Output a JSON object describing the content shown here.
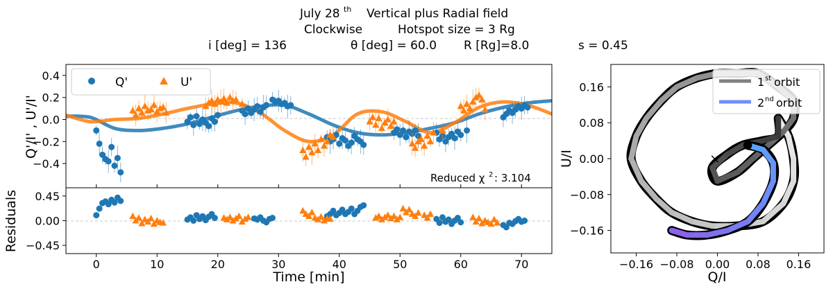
{
  "title": {
    "line1": {
      "main": "July 28",
      "sup": "th",
      "rest": "Vertical plus Radial field"
    },
    "line2": {
      "direction": "Clockwise",
      "hotspot": "Hotspot size = 3 Rg"
    },
    "line3": {
      "inc": "i [deg] = 136",
      "theta": "θ [deg] = 60.0",
      "radius": "R [Rg]=8.0",
      "s": "s = 0.45"
    }
  },
  "chart_data": [
    {
      "type": "scatter",
      "panel": "top-left",
      "ylabel": "Q'/I' , U'/I'",
      "xlim": [
        -5,
        75
      ],
      "ylim": [
        -0.62,
        0.5
      ],
      "xticks": [
        0,
        10,
        20,
        30,
        40,
        50,
        60,
        70
      ],
      "yticks": [
        0.4,
        0.2,
        0.0,
        -0.2,
        -0.4
      ],
      "ytick_labels": [
        "0.4",
        "0.2",
        "0.0",
        "−0.2",
        "−0.4"
      ],
      "legend": {
        "entries": [
          "Q'",
          "U'"
        ],
        "placement": "upper-left"
      },
      "annotation": {
        "text": "Reduced χ",
        "sup": "2",
        "value": ":  3.104"
      },
      "series": [
        {
          "name": "Q'",
          "color": "#1f77b4",
          "marker": "circle",
          "x": [
            0,
            0.5,
            1,
            1.5,
            2,
            2.5,
            3,
            3.5,
            4,
            15,
            15.5,
            16,
            16.5,
            17,
            17.5,
            18,
            18.5,
            19,
            19.5,
            20,
            24,
            24.5,
            25,
            25.5,
            26,
            26.5,
            27,
            27.5,
            28,
            29,
            29.5,
            30,
            30.5,
            31,
            31.5,
            32,
            38,
            38.5,
            39,
            39.5,
            40,
            40.5,
            41,
            41.5,
            42,
            42.5,
            43,
            43.5,
            44,
            49,
            49.5,
            50,
            50.5,
            51,
            51.5,
            52,
            52.5,
            53,
            56,
            56.5,
            57,
            57.5,
            58,
            58.5,
            59,
            59.5,
            60,
            61,
            67,
            67.5,
            68,
            68.5,
            69,
            69.5,
            70,
            70.5,
            71
          ],
          "y": [
            -0.1,
            -0.22,
            -0.32,
            -0.36,
            -0.38,
            -0.25,
            -0.42,
            -0.35,
            -0.48,
            -0.02,
            0.02,
            -0.05,
            0.03,
            -0.04,
            0.0,
            -0.03,
            -0.06,
            0.01,
            -0.02,
            0.04,
            0.08,
            0.05,
            0.1,
            0.06,
            0.09,
            0.12,
            0.07,
            0.11,
            0.13,
            0.18,
            0.16,
            0.17,
            0.14,
            0.15,
            0.12,
            0.13,
            -0.16,
            -0.2,
            -0.18,
            -0.14,
            -0.22,
            -0.17,
            -0.19,
            -0.24,
            -0.21,
            -0.15,
            -0.18,
            -0.2,
            -0.23,
            -0.12,
            -0.09,
            -0.14,
            -0.1,
            -0.16,
            -0.11,
            -0.13,
            -0.1,
            -0.15,
            -0.12,
            -0.18,
            -0.15,
            -0.2,
            -0.16,
            -0.13,
            -0.17,
            -0.11,
            -0.14,
            -0.1,
            0.02,
            0.05,
            0.08,
            0.06,
            0.09,
            0.12,
            0.1,
            0.13,
            0.11
          ]
        },
        {
          "name": "U'",
          "color": "#ff7f0e",
          "marker": "triangle",
          "x": [
            6,
            6.5,
            7,
            7.5,
            8,
            8.5,
            9,
            9.5,
            10,
            10.5,
            11,
            11.5,
            18,
            18.5,
            19,
            19.5,
            20,
            20.5,
            21,
            21.5,
            22,
            22.5,
            23,
            24,
            34,
            34.5,
            35,
            35.5,
            36,
            36.5,
            37,
            37.5,
            38,
            38.5,
            39,
            45,
            45.5,
            46,
            46.5,
            47,
            47.5,
            48,
            48.5,
            49,
            52,
            52.5,
            53,
            53.5,
            54,
            54.5,
            55,
            55.5,
            57,
            60,
            60.5,
            61,
            61.5,
            62,
            62.5,
            63,
            63.5,
            64
          ],
          "y": [
            0.08,
            0.04,
            0.1,
            0.06,
            0.12,
            0.08,
            0.09,
            0.13,
            0.07,
            0.1,
            0.11,
            0.06,
            0.12,
            0.15,
            0.17,
            0.14,
            0.18,
            0.16,
            0.19,
            0.15,
            0.2,
            0.17,
            0.18,
            0.14,
            -0.28,
            -0.34,
            -0.25,
            -0.3,
            -0.22,
            -0.28,
            -0.18,
            -0.24,
            -0.2,
            -0.14,
            -0.16,
            -0.02,
            0.02,
            -0.05,
            0.01,
            -0.08,
            -0.03,
            0.0,
            -0.06,
            -0.02,
            -0.22,
            -0.26,
            -0.2,
            -0.18,
            -0.24,
            -0.15,
            -0.2,
            -0.12,
            -0.1,
            0.12,
            0.08,
            0.14,
            0.1,
            0.16,
            0.2,
            0.22,
            0.18,
            0.09
          ]
        }
      ],
      "model_curves": [
        {
          "name": "Q' model",
          "color": "#1f77b4",
          "x": [
            -5,
            -1,
            3,
            7,
            11,
            15,
            19,
            23,
            27,
            31,
            35,
            39,
            43,
            47,
            51,
            55,
            59,
            63,
            67,
            71,
            75
          ],
          "y": [
            0.03,
            0.02,
            -0.08,
            -0.1,
            -0.08,
            -0.04,
            0.02,
            0.08,
            0.12,
            0.13,
            0.05,
            -0.05,
            -0.12,
            -0.14,
            -0.12,
            -0.08,
            -0.03,
            0.05,
            0.11,
            0.15,
            0.17
          ]
        },
        {
          "name": "U' model",
          "color": "#ff7f0e",
          "x": [
            -5,
            -1,
            3,
            7,
            11,
            15,
            19,
            23,
            27,
            31,
            35,
            39,
            43,
            47,
            51,
            55,
            59,
            63,
            67,
            71,
            75
          ],
          "y": [
            0.04,
            -0.02,
            0.0,
            0.01,
            0.05,
            0.1,
            0.14,
            0.15,
            0.06,
            -0.1,
            -0.2,
            -0.14,
            0.05,
            0.07,
            -0.02,
            -0.12,
            -0.03,
            0.11,
            0.16,
            0.13,
            0.05
          ]
        }
      ]
    },
    {
      "type": "scatter",
      "panel": "bottom-left",
      "xlabel": "Time [min]",
      "ylabel": "Residuals",
      "xlim": [
        -5,
        75
      ],
      "ylim": [
        -0.6,
        0.6
      ],
      "xticks": [
        0,
        10,
        20,
        30,
        40,
        50,
        60,
        70
      ],
      "yticks": [
        0.45,
        0.0,
        -0.45
      ],
      "ytick_labels": [
        "0.45",
        "0.00",
        "−0.45"
      ],
      "series": [
        {
          "name": "Q' residuals",
          "color": "#1f77b4",
          "marker": "circle",
          "x": [
            0,
            0.5,
            1,
            1.5,
            2,
            2.5,
            3,
            3.5,
            4,
            15,
            15.5,
            16,
            16.5,
            17,
            17.5,
            18,
            18.5,
            19,
            19.5,
            26,
            26.5,
            27,
            27.5,
            28,
            28.5,
            29,
            38,
            38.5,
            39,
            39.5,
            40,
            40.5,
            41,
            41.5,
            42,
            42.5,
            43,
            43.5,
            44,
            56,
            56.5,
            57,
            57.5,
            58,
            58.5,
            59,
            59.5,
            60,
            67,
            67.5,
            68,
            68.5,
            69,
            69.5,
            70,
            70.5
          ],
          "y": [
            0.1,
            0.22,
            0.32,
            0.35,
            0.3,
            0.38,
            0.33,
            0.42,
            0.36,
            0.02,
            0.06,
            0.0,
            0.1,
            0.03,
            0.08,
            0.01,
            0.07,
            0.12,
            0.05,
            0.04,
            0.02,
            0.06,
            0.0,
            -0.03,
            0.03,
            0.05,
            0.08,
            0.12,
            0.18,
            0.1,
            0.14,
            0.2,
            0.12,
            0.16,
            0.22,
            0.12,
            0.18,
            0.25,
            0.28,
            0.03,
            -0.04,
            0.06,
            -0.02,
            0.02,
            -0.06,
            0.0,
            0.05,
            -0.03,
            -0.08,
            -0.12,
            -0.04,
            -0.06,
            -0.01,
            0.03,
            -0.02,
            0.0
          ]
        },
        {
          "name": "U' residuals",
          "color": "#ff7f0e",
          "marker": "triangle",
          "x": [
            6,
            6.5,
            7,
            7.5,
            8,
            8.5,
            9,
            9.5,
            10,
            10.5,
            11,
            21,
            21.5,
            22,
            22.5,
            23,
            23.5,
            24,
            24.5,
            25,
            34,
            34.5,
            35,
            35.5,
            36,
            36.5,
            37,
            37.5,
            38,
            38.5,
            46,
            46.5,
            47,
            47.5,
            48,
            48.5,
            49,
            49.5,
            50,
            50.5,
            51,
            51.5,
            52,
            52.5,
            53,
            54,
            54.5,
            55,
            62,
            62.5,
            63,
            63.5,
            64,
            64.5,
            65,
            65.5,
            66
          ],
          "y": [
            0.08,
            0.0,
            0.05,
            -0.05,
            0.02,
            -0.02,
            0.04,
            -0.06,
            0.0,
            -0.03,
            -0.04,
            0.05,
            0.02,
            0.06,
            0.0,
            0.04,
            0.08,
            -0.02,
            0.03,
            0.06,
            0.18,
            0.12,
            0.08,
            0.15,
            0.05,
            0.02,
            0.07,
            0.0,
            0.04,
            0.03,
            0.05,
            0.08,
            0.02,
            0.06,
            0.1,
            0.04,
            0.08,
            0.02,
            0.06,
            0.22,
            0.15,
            0.2,
            0.12,
            0.08,
            0.14,
            0.1,
            0.05,
            0.12,
            0.06,
            -0.02,
            0.04,
            -0.05,
            0.0,
            -0.03,
            -0.06,
            0.02,
            -0.04
          ]
        }
      ]
    },
    {
      "type": "line",
      "panel": "right",
      "xlabel": "Q/I",
      "ylabel": "U/I",
      "xlim": [
        -0.21,
        0.21
      ],
      "ylim": [
        -0.21,
        0.21
      ],
      "xticks": [
        -0.16,
        -0.08,
        0.0,
        0.08,
        0.16
      ],
      "xtick_labels": [
        "−0.16",
        "−0.08",
        "0.00",
        "0.08",
        "0.16"
      ],
      "yticks": [
        0.16,
        0.08,
        0.0,
        -0.08,
        -0.16
      ],
      "ytick_labels": [
        "0.16",
        "0.08",
        "0.00",
        "−0.08",
        "−0.16"
      ],
      "legend": {
        "placement": "upper-right",
        "entries": [
          {
            "label": "1",
            "sup": "st",
            "rest": " orbit",
            "color": "#808080"
          },
          {
            "label": "2",
            "sup": "nd",
            "rest": " orbit",
            "color": "#6f8cff"
          }
        ]
      },
      "start_marker": {
        "x": -0.005,
        "y": 0.0,
        "symbol": "×"
      },
      "end_marker": {
        "x": 0.06,
        "y": 0.03
      },
      "orbit1": {
        "x": [
          0.12,
          0.14,
          0.15,
          0.15,
          0.13,
          0.09,
          0.04,
          -0.01,
          -0.05,
          -0.09,
          -0.12,
          -0.15,
          -0.17,
          -0.16,
          -0.14,
          -0.11,
          -0.08,
          -0.04,
          0.0,
          0.04,
          0.08,
          0.12,
          0.15,
          0.15,
          0.13,
          0.1,
          0.07,
          0.04,
          0.0,
          -0.01,
          0.02,
          0.05,
          0.09,
          0.12,
          0.12
        ],
        "y": [
          0.09,
          0.05,
          0.0,
          -0.05,
          -0.1,
          -0.14,
          -0.15,
          -0.15,
          -0.14,
          -0.12,
          -0.09,
          -0.05,
          0.0,
          0.05,
          0.09,
          0.13,
          0.16,
          0.18,
          0.19,
          0.19,
          0.19,
          0.16,
          0.13,
          0.09,
          0.06,
          0.03,
          0.0,
          -0.03,
          -0.05,
          -0.02,
          0.01,
          0.03,
          0.04,
          0.05,
          0.09
        ],
        "color_start": "#ececec",
        "color_end": "#3a3a3a"
      },
      "orbit2": {
        "x": [
          0.06,
          0.09,
          0.11,
          0.11,
          0.09,
          0.06,
          0.02,
          -0.02,
          -0.06,
          -0.09
        ],
        "y": [
          0.03,
          0.02,
          -0.01,
          -0.05,
          -0.1,
          -0.14,
          -0.16,
          -0.17,
          -0.17,
          -0.16
        ],
        "color_start": "#5aa4ff",
        "color_end": "#8a63e8"
      }
    }
  ]
}
